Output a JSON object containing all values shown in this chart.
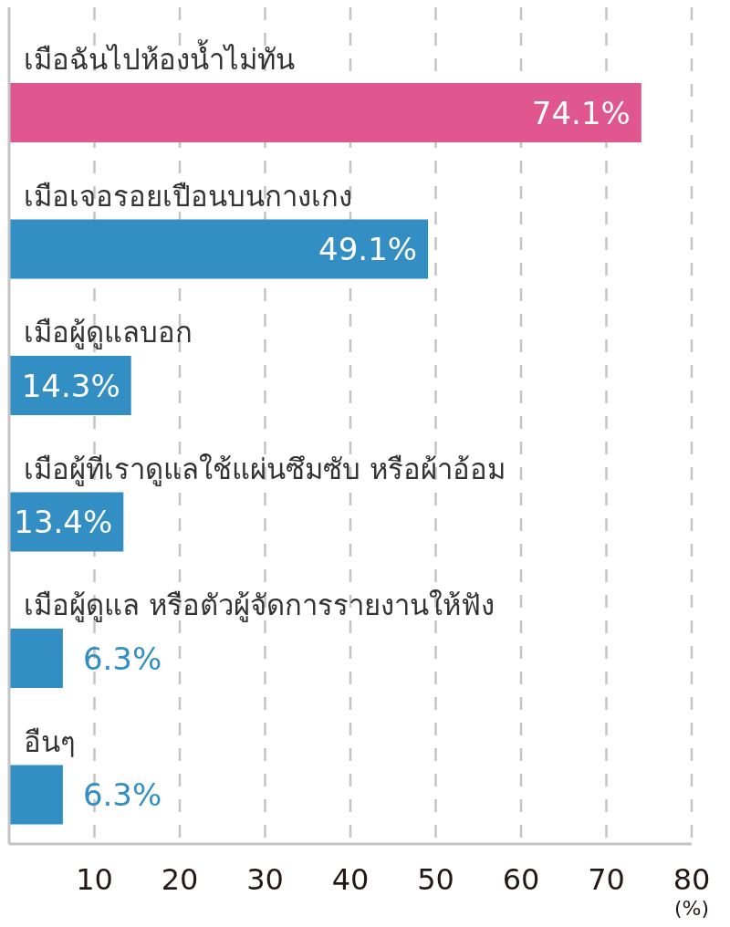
{
  "chart_data": {
    "type": "bar",
    "orientation": "horizontal",
    "categories": [
      "เมือฉันไปห้องน้ำไม่ทัน",
      "เมือเจอรอยเปือนบนกางเกง",
      "เมือผู้ดูแลบอก",
      "เมือผู้ทีเราดูแลใช้แผ่นซึมซับ หรือผ้าอ้อม",
      "เมือผู้ดูแล หรือตัวผู้จัดการรายงานให้ฟัง",
      "อืนๆ"
    ],
    "values": [
      74.1,
      49.1,
      14.3,
      13.4,
      6.3,
      6.3
    ],
    "colors": [
      "#e0568f",
      "#338ec3",
      "#338ec3",
      "#338ec3",
      "#338ec3",
      "#338ec3"
    ],
    "value_labels": [
      "74.1%",
      "49.1%",
      "14.3%",
      "13.4%",
      "6.3%",
      "6.3%"
    ],
    "xlim": [
      0,
      80
    ],
    "xticks": [
      10,
      20,
      30,
      40,
      50,
      60,
      70,
      80
    ],
    "xlabel": "(%)",
    "grid": "x"
  }
}
